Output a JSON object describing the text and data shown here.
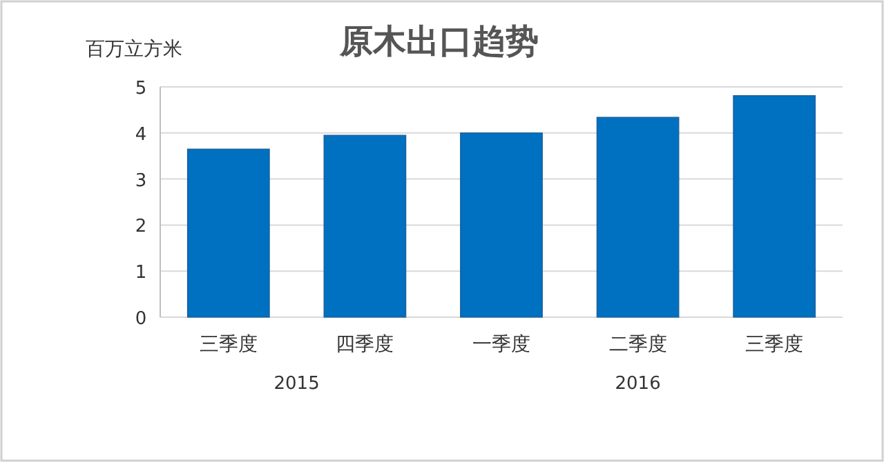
{
  "chart_data": {
    "type": "bar",
    "title": "原木出口趋势",
    "ylabel": "百万立方米",
    "categories": [
      "三季度",
      "四季度",
      "一季度",
      "二季度",
      "三季度"
    ],
    "values": [
      3.65,
      3.95,
      4.0,
      4.34,
      4.81
    ],
    "color": "#0070c0",
    "ylim": [
      0,
      5
    ],
    "yticks": [
      0,
      1,
      2,
      3,
      4,
      5
    ],
    "grid": "y",
    "annotations": [
      "2015",
      "2016"
    ]
  }
}
